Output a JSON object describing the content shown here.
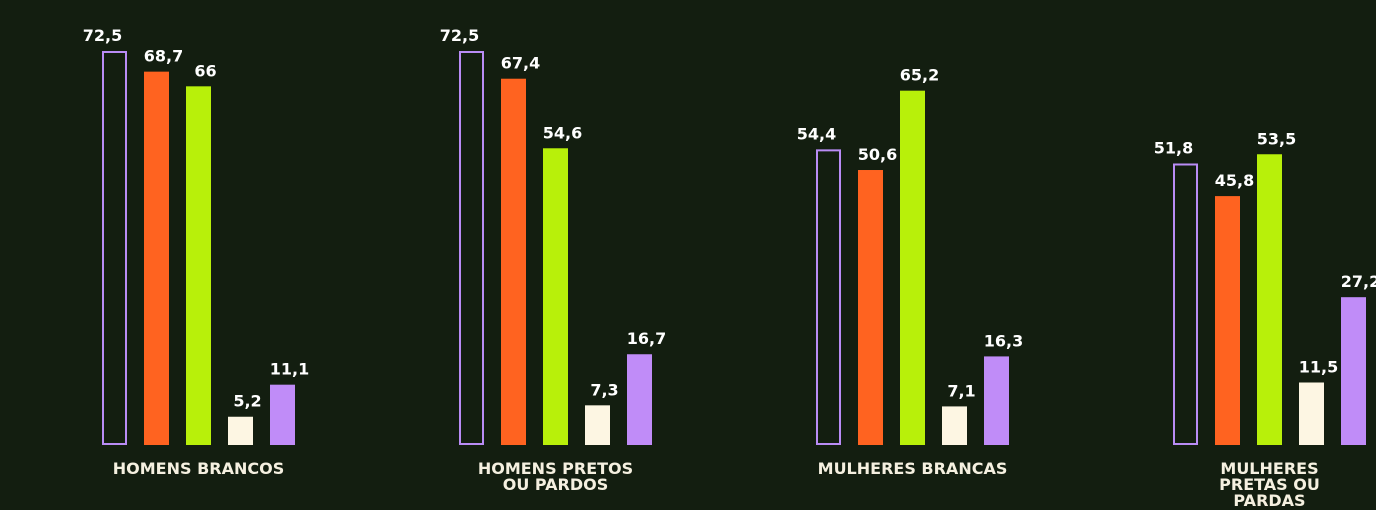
{
  "chart_data": {
    "type": "bar",
    "categories": [
      "HOMENS BRANCOS",
      "HOMENS PRETOS OU PARDOS",
      "MULHERES BRANCAS",
      "MULHERES PRETAS OU PARDAS"
    ],
    "series": [
      {
        "color": "#b98cf5",
        "outline": true,
        "values": [
          72.5,
          72.5,
          54.4,
          51.8
        ],
        "value_labels": [
          "72,5",
          "72,5",
          "54,4",
          "51,8"
        ]
      },
      {
        "color": "#ff6320",
        "values": [
          68.7,
          67.4,
          50.6,
          45.8
        ],
        "value_labels": [
          "68,7",
          "67,4",
          "50,6",
          "45,8"
        ]
      },
      {
        "color": "#b8f00a",
        "values": [
          66,
          54.6,
          65.2,
          53.5
        ],
        "value_labels": [
          "66",
          "54,6",
          "65,2",
          "53,5"
        ]
      },
      {
        "color": "#fdf6e3",
        "values": [
          5.2,
          7.3,
          7.1,
          11.5
        ],
        "value_labels": [
          "5,2",
          "7,3",
          "7,1",
          "11,5"
        ]
      },
      {
        "color": "#c08cf8",
        "values": [
          11.1,
          16.7,
          16.3,
          27.2
        ],
        "value_labels": [
          "11,1",
          "16,7",
          "16,3",
          "27,2"
        ]
      }
    ]
  }
}
